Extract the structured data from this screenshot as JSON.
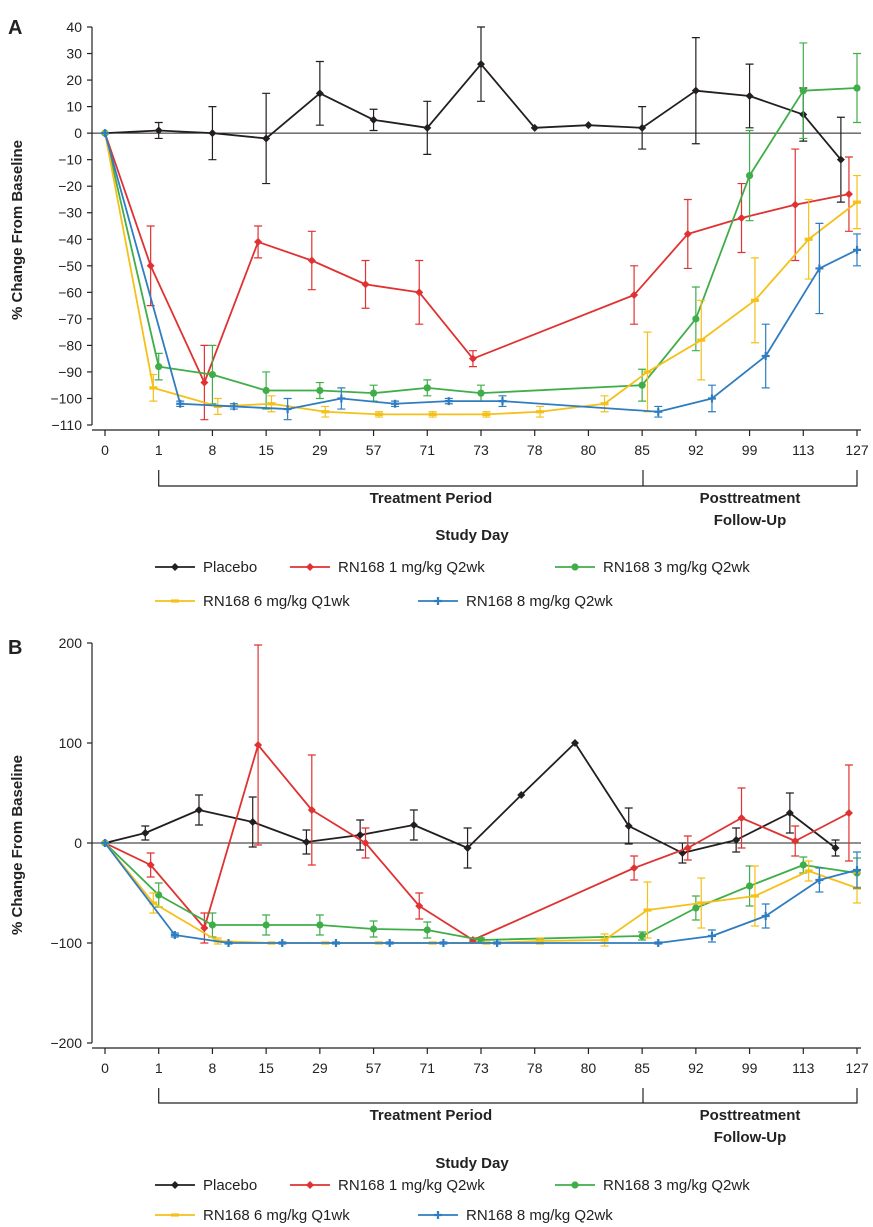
{
  "chart_data": [
    {
      "type": "line",
      "panel_label": "A",
      "ylabel": "% Change From Baseline",
      "xlabel": "Study Day",
      "x_tick_labels": [
        "0",
        "1",
        "8",
        "15",
        "29",
        "57",
        "71",
        "73",
        "78",
        "80",
        "85",
        "92",
        "99",
        "113",
        "127"
      ],
      "ylim": [
        -110,
        40
      ],
      "y_ticks": [
        "40",
        "30",
        "20",
        "10",
        "0",
        "−10",
        "−20",
        "−30",
        "−40",
        "−50",
        "−60",
        "−70",
        "−80",
        "−90",
        "−100",
        "−110"
      ],
      "reference_line": 0,
      "periods": [
        {
          "label": "Treatment Period"
        },
        {
          "label": "Posttreatment\nFollow-Up"
        }
      ],
      "series": [
        {
          "name": "Placebo",
          "color": "#231f20",
          "marker": "diamond",
          "x": [
            0,
            1,
            2,
            3,
            4,
            5,
            6,
            7,
            8,
            9,
            10,
            11,
            12,
            13,
            13.7
          ],
          "y": [
            0,
            1,
            0,
            -2,
            15,
            5,
            2,
            26,
            2,
            3,
            2,
            16,
            14,
            7,
            -10
          ],
          "err": [
            0,
            3,
            10,
            17,
            12,
            4,
            10,
            14,
            0,
            0,
            8,
            20,
            12,
            10,
            16
          ]
        },
        {
          "name": "RN168 1 mg/kg Q2wk",
          "color": "#e03232",
          "marker": "diamond",
          "x": [
            0,
            0.85,
            1.85,
            2.85,
            3.85,
            4.85,
            5.85,
            6.85,
            9.85,
            10.85,
            11.85,
            12.85,
            13.85
          ],
          "y": [
            0,
            -50,
            -94,
            -41,
            -48,
            -57,
            -60,
            -85,
            -61,
            -38,
            -32,
            -27,
            -23
          ],
          "err": [
            0,
            15,
            14,
            6,
            11,
            9,
            12,
            3,
            11,
            13,
            13,
            21,
            14
          ]
        },
        {
          "name": "RN168 3 mg/kg Q2wk",
          "color": "#3fae49",
          "marker": "circle",
          "x": [
            0,
            1,
            2,
            3,
            4,
            5,
            6,
            7,
            10,
            11,
            12,
            13,
            14
          ],
          "y": [
            0,
            -88,
            -91,
            -97,
            -97,
            -98,
            -96,
            -98,
            -95,
            -70,
            -16,
            16,
            17
          ],
          "err": [
            0,
            5,
            11,
            7,
            3,
            3,
            3,
            3,
            6,
            12,
            17,
            18,
            13
          ]
        },
        {
          "name": "RN168 6 mg/kg Q1wk",
          "color": "#f5c018",
          "marker": "dash",
          "x": [
            0,
            0.9,
            2.1,
            3.1,
            4.1,
            5.1,
            6.1,
            7.1,
            8.1,
            9.3,
            10.1,
            11.1,
            12.1,
            13.1,
            14
          ],
          "y": [
            0,
            -96,
            -103,
            -102,
            -105,
            -106,
            -106,
            -106,
            -105,
            -102,
            -90,
            -78,
            -63,
            -40,
            -26
          ],
          "err": [
            0,
            5,
            3,
            3,
            2,
            1,
            1,
            1,
            2,
            3,
            15,
            15,
            16,
            15,
            10
          ]
        },
        {
          "name": "RN168 8 mg/kg Q2wk",
          "color": "#2f7dc1",
          "marker": "plus",
          "x": [
            0,
            1.4,
            2.4,
            3.4,
            4.4,
            5.4,
            6.4,
            7.4,
            10.3,
            11.3,
            12.3,
            13.3,
            14
          ],
          "y": [
            0,
            -102,
            -103,
            -104,
            -100,
            -102,
            -101,
            -101,
            -105,
            -100,
            -84,
            -51,
            -44
          ],
          "err": [
            0,
            1,
            1,
            4,
            4,
            1,
            1,
            2,
            2,
            5,
            12,
            17,
            6
          ]
        }
      ]
    },
    {
      "type": "line",
      "panel_label": "B",
      "ylabel": "% Change From Baseline",
      "xlabel": "Study Day",
      "x_tick_labels": [
        "0",
        "1",
        "8",
        "15",
        "29",
        "57",
        "71",
        "73",
        "78",
        "80",
        "85",
        "92",
        "99",
        "113",
        "127"
      ],
      "ylim": [
        -200,
        200
      ],
      "y_ticks": [
        "200",
        "100",
        "0",
        "−100",
        "−200"
      ],
      "reference_line": 0,
      "periods": [
        {
          "label": "Treatment Period"
        },
        {
          "label": "Posttreatment\nFollow-Up"
        }
      ],
      "series": [
        {
          "name": "Placebo",
          "color": "#231f20",
          "marker": "diamond",
          "x": [
            0,
            0.75,
            1.75,
            2.75,
            3.75,
            4.75,
            5.75,
            6.75,
            7.75,
            8.75,
            9.75,
            10.75,
            11.75,
            12.75,
            13.6
          ],
          "y": [
            0,
            10,
            33,
            21,
            1,
            8,
            18,
            -5,
            48,
            100,
            17,
            -10,
            3,
            30,
            -5
          ],
          "err": [
            0,
            7,
            15,
            25,
            12,
            15,
            15,
            20,
            0,
            0,
            18,
            10,
            12,
            20,
            8
          ]
        },
        {
          "name": "RN168 1 mg/kg Q2wk",
          "color": "#e03232",
          "marker": "diamond",
          "x": [
            0,
            0.85,
            1.85,
            2.85,
            3.85,
            4.85,
            5.85,
            6.85,
            9.85,
            10.85,
            11.85,
            12.85,
            13.85
          ],
          "y": [
            0,
            -22,
            -85,
            98,
            33,
            0,
            -63,
            -97,
            -25,
            -5,
            25,
            2,
            30
          ],
          "err": [
            0,
            12,
            15,
            100,
            55,
            15,
            13,
            2,
            12,
            12,
            30,
            15,
            48
          ]
        },
        {
          "name": "RN168 3 mg/kg Q2wk",
          "color": "#3fae49",
          "marker": "circle",
          "x": [
            0,
            1,
            2,
            3,
            4,
            5,
            6,
            7,
            10,
            11,
            12,
            13,
            14
          ],
          "y": [
            0,
            -52,
            -82,
            -82,
            -82,
            -86,
            -87,
            -97,
            -93,
            -65,
            -43,
            -22,
            -30
          ],
          "err": [
            0,
            12,
            12,
            10,
            10,
            8,
            8,
            2,
            4,
            12,
            20,
            8,
            15
          ]
        },
        {
          "name": "RN168 6 mg/kg Q1wk",
          "color": "#f5c018",
          "marker": "dash",
          "x": [
            0,
            0.9,
            2.1,
            3.1,
            4.1,
            5.1,
            6.1,
            7.1,
            8.1,
            9.3,
            10.1,
            11.1,
            12.1,
            13.1,
            14
          ],
          "y": [
            0,
            -60,
            -98,
            -100,
            -100,
            -100,
            -100,
            -100,
            -98,
            -97,
            -67,
            -60,
            -53,
            -28,
            -45
          ],
          "err": [
            0,
            10,
            3,
            1,
            1,
            1,
            1,
            1,
            3,
            6,
            28,
            25,
            30,
            10,
            15
          ]
        },
        {
          "name": "RN168 8 mg/kg Q2wk",
          "color": "#2f7dc1",
          "marker": "plus",
          "x": [
            0,
            1.3,
            2.3,
            3.3,
            4.3,
            5.3,
            6.3,
            7.3,
            10.3,
            11.3,
            12.3,
            13.3,
            14
          ],
          "y": [
            0,
            -92,
            -100,
            -100,
            -100,
            -100,
            -100,
            -100,
            -100,
            -93,
            -73,
            -37,
            -27
          ],
          "err": [
            0,
            2,
            1,
            1,
            1,
            1,
            1,
            1,
            1,
            6,
            12,
            12,
            18
          ]
        }
      ]
    }
  ]
}
